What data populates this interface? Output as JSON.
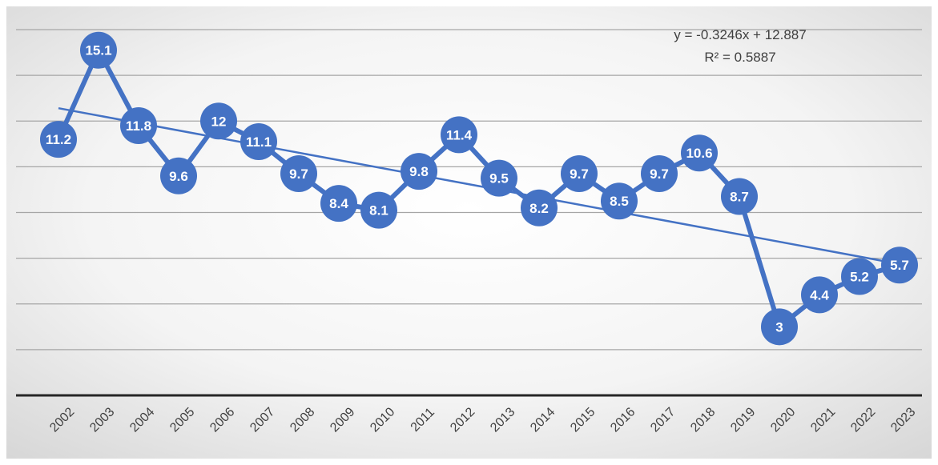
{
  "chart_data": {
    "type": "line",
    "categories": [
      "2002",
      "2003",
      "2004",
      "2005",
      "2006",
      "2007",
      "2008",
      "2009",
      "2010",
      "2011",
      "2012",
      "2013",
      "2014",
      "2015",
      "2016",
      "2017",
      "2018",
      "2019",
      "2020",
      "2021",
      "2022",
      "2023"
    ],
    "series": [
      {
        "values": [
          11.2,
          15.1,
          11.8,
          9.6,
          12,
          11.1,
          9.7,
          8.4,
          8.1,
          9.8,
          11.4,
          9.5,
          8.2,
          9.7,
          8.5,
          9.7,
          10.6,
          8.7,
          3,
          4.4,
          5.2,
          5.7
        ],
        "labels": [
          "11.2",
          "15.1",
          "11.8",
          "9.6",
          "12",
          "11.1",
          "9.7",
          "8.4",
          "8.1",
          "9.8",
          "11.4",
          "9.5",
          "8.2",
          "9.7",
          "8.5",
          "9.7",
          "10.6",
          "8.7",
          "3",
          "4.4",
          "5.2",
          "5.7"
        ]
      }
    ],
    "trendline": {
      "type": "linear",
      "slope": -0.3246,
      "intercept": 12.887,
      "equation": "y = -0.3246x + 12.887",
      "r_squared_label": "R² = 0.5887"
    },
    "ylim": [
      0,
      16
    ],
    "grid": true,
    "y_tick_labels_visible": false,
    "colors": {
      "series": "#4472C4",
      "gridline": "#a6a6a6",
      "axis": "#262626"
    }
  }
}
